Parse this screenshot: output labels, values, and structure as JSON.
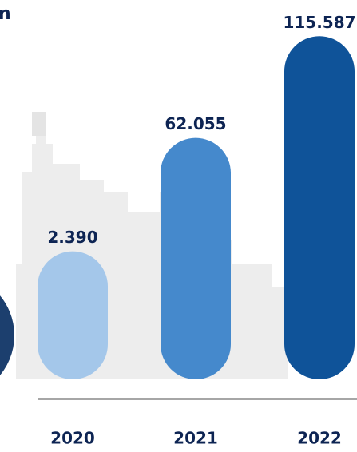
{
  "chart_data": {
    "type": "bar",
    "title": "n",
    "categories": [
      "2020",
      "2021",
      "2022"
    ],
    "values": [
      2390,
      62055,
      115587
    ],
    "value_labels": [
      "2.390",
      "62.055",
      "115.587"
    ],
    "colors": [
      "#a4c7ea",
      "#4589cc",
      "#0f5399"
    ],
    "ylim": [
      -65000,
      122000
    ]
  }
}
